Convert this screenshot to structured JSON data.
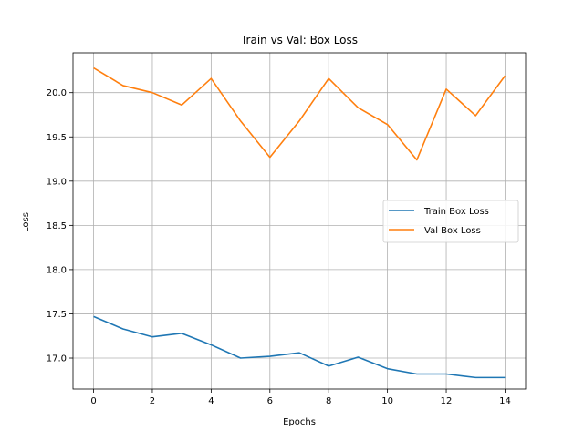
{
  "chart_data": {
    "type": "line",
    "title": "Train vs Val: Box Loss",
    "xlabel": "Epochs",
    "ylabel": "Loss",
    "x": [
      0,
      1,
      2,
      3,
      4,
      5,
      6,
      7,
      8,
      9,
      10,
      11,
      12,
      13,
      14
    ],
    "xlim": [
      -0.7,
      14.7
    ],
    "ylim": [
      16.65,
      20.45
    ],
    "xticks": [
      0,
      2,
      4,
      6,
      8,
      10,
      12,
      14
    ],
    "yticks": [
      17.0,
      17.5,
      18.0,
      18.5,
      19.0,
      19.5,
      20.0
    ],
    "xtick_labels": [
      "0",
      "2",
      "4",
      "6",
      "8",
      "10",
      "12",
      "14"
    ],
    "ytick_labels": [
      "17.0",
      "17.5",
      "18.0",
      "18.5",
      "19.0",
      "19.5",
      "20.0"
    ],
    "grid": true,
    "legend_position": "center-right",
    "series": [
      {
        "name": "Train Box Loss",
        "color": "#1f77b4",
        "values": [
          17.47,
          17.33,
          17.24,
          17.28,
          17.15,
          17.0,
          17.02,
          17.06,
          16.91,
          17.01,
          16.88,
          16.82,
          16.82,
          16.78,
          16.78
        ]
      },
      {
        "name": "Val Box Loss",
        "color": "#ff7f0e",
        "values": [
          20.28,
          20.08,
          20.0,
          19.86,
          20.16,
          19.68,
          19.27,
          19.68,
          20.16,
          19.83,
          19.64,
          19.24,
          20.04,
          19.74,
          20.19
        ]
      }
    ]
  }
}
